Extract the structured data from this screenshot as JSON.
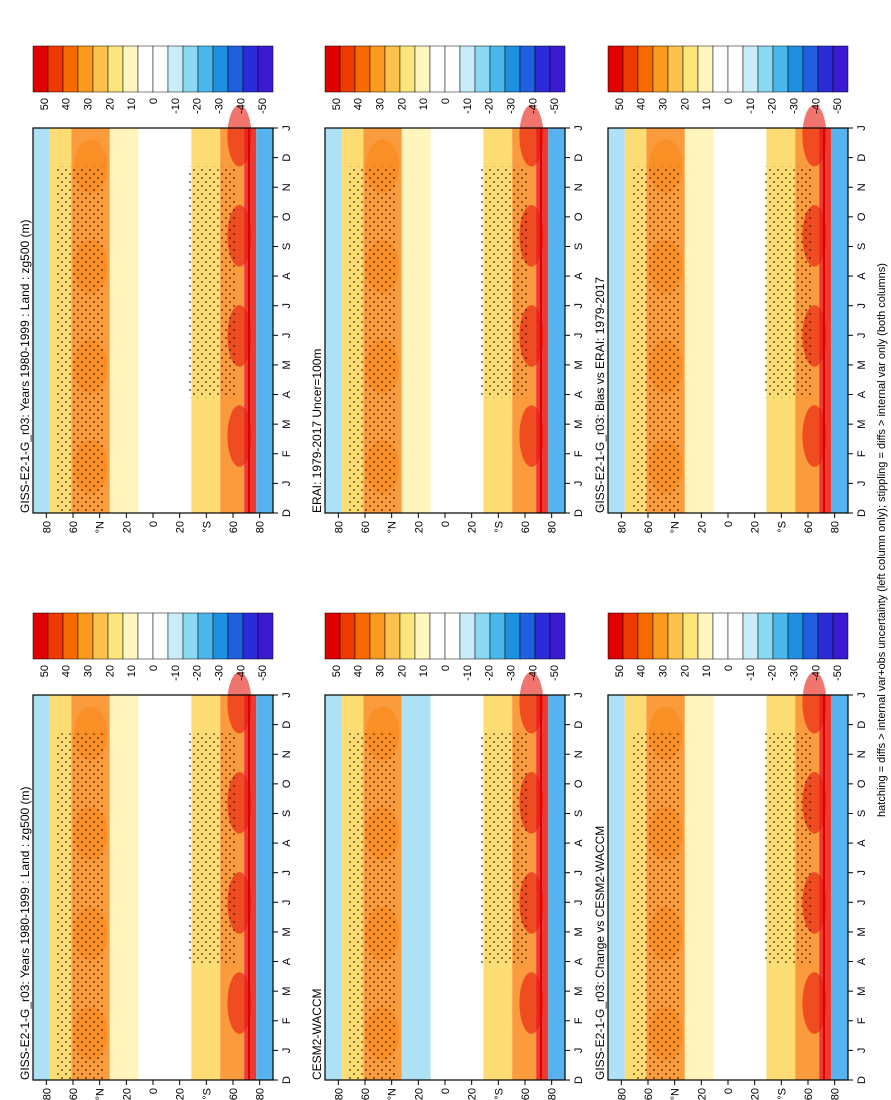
{
  "footnote": "hatching = diffs > internal var+obs uncertainty (left column only); stippling = diffs > internal var only (both columns)",
  "colorbar": {
    "labels": [
      "50",
      "40",
      "30",
      "20",
      "10",
      "0",
      "-10",
      "-20",
      "-30",
      "-40",
      "-50"
    ],
    "colors": [
      "#e00000",
      "#ee3a00",
      "#f76a00",
      "#fb9a1c",
      "#fdc24c",
      "#fde57e",
      "#fff7c0",
      "#ffffff",
      "#ffffff",
      "#c9eef9",
      "#8ad8f2",
      "#4ab8ec",
      "#1f8fe0",
      "#1f5fe0",
      "#2b2bd9",
      "#3a1ad0"
    ]
  },
  "chart_data": [
    {
      "type": "heatmap",
      "title": "GISS-E2-1-G_r03: Years 1980-1999 : Land : zg500 (m)",
      "x": [
        "D",
        "J",
        "F",
        "M",
        "A",
        "M",
        "J",
        "J",
        "A",
        "S",
        "O",
        "N",
        "D",
        "J"
      ],
      "y": [
        "80",
        "60",
        "°N",
        "20",
        "0",
        "20",
        "°S",
        "60",
        "80"
      ]
    },
    {
      "type": "heatmap",
      "title": "GISS-E2-1-G_r03: Years 1980-1999 : Land : zg500 (m)",
      "x": [
        "D",
        "J",
        "F",
        "M",
        "A",
        "M",
        "J",
        "J",
        "A",
        "S",
        "O",
        "N",
        "D",
        "J"
      ],
      "y": [
        "80",
        "60",
        "°N",
        "20",
        "0",
        "20",
        "°S",
        "60",
        "80"
      ]
    },
    {
      "type": "heatmap",
      "title": "ERAI: 1979-2017 Uncer=100m",
      "x": [
        "D",
        "J",
        "F",
        "M",
        "A",
        "M",
        "J",
        "J",
        "A",
        "S",
        "O",
        "N",
        "D",
        "J"
      ],
      "y": [
        "80",
        "60",
        "°N",
        "20",
        "0",
        "20",
        "°S",
        "60",
        "80"
      ]
    },
    {
      "type": "heatmap",
      "title": "CESM2-WACCM",
      "x": [
        "D",
        "J",
        "F",
        "M",
        "A",
        "M",
        "J",
        "J",
        "A",
        "S",
        "O",
        "N",
        "D",
        "J"
      ],
      "y": [
        "80",
        "60",
        "°N",
        "20",
        "0",
        "20",
        "°S",
        "60",
        "80"
      ]
    },
    {
      "type": "heatmap",
      "title": "GISS-E2-1-G_r03: Bias vs ERAI: 1979-2017",
      "x": [
        "D",
        "J",
        "F",
        "M",
        "A",
        "M",
        "J",
        "J",
        "A",
        "S",
        "O",
        "N",
        "D",
        "J"
      ],
      "y": [
        "80",
        "60",
        "°N",
        "20",
        "0",
        "20",
        "°S",
        "60",
        "80"
      ]
    },
    {
      "type": "heatmap",
      "title": "GISS-E2-1-G_r03: Change vs CESM2-WACCM",
      "x": [
        "D",
        "J",
        "F",
        "M",
        "A",
        "M",
        "J",
        "J",
        "A",
        "S",
        "O",
        "N",
        "D",
        "J"
      ],
      "y": [
        "80",
        "60",
        "°N",
        "20",
        "0",
        "20",
        "°S",
        "60",
        "80"
      ]
    }
  ]
}
